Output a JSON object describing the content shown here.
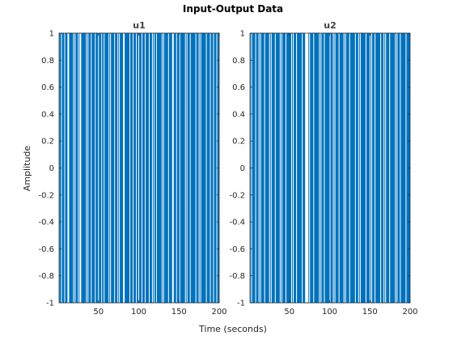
{
  "figure": {
    "title": "Input-Output Data",
    "xlabel": "Time (seconds)",
    "ylabel": "Amplitude"
  },
  "colors": {
    "signal": "#0072bd",
    "axes": "#262626",
    "background": "#ffffff"
  },
  "chart_data": [
    {
      "type": "line",
      "title": "u1",
      "xlabel": "",
      "ylabel": "",
      "xlim": [
        1,
        200
      ],
      "ylim": [
        -1,
        1
      ],
      "xticks": [
        50,
        100,
        150,
        200
      ],
      "yticks": [
        -1,
        -0.8,
        -0.6,
        -0.4,
        -0.2,
        0,
        0.2,
        0.4,
        0.6,
        0.8,
        1
      ],
      "ytick_labels": [
        "-1",
        "-0.8",
        "-0.6",
        "-0.4",
        "-0.2",
        "0",
        "0.2",
        "0.4",
        "0.6",
        "0.8",
        "1"
      ],
      "grid": false,
      "series": [
        {
          "values": [
            1,
            -1,
            1,
            1,
            -1,
            1,
            -1,
            -1,
            1,
            -1,
            1,
            1,
            1,
            -1,
            1,
            -1,
            1,
            -1,
            -1,
            1,
            1,
            -1,
            1,
            -1,
            -1,
            1,
            1,
            1,
            -1,
            1,
            -1,
            1,
            -1,
            1,
            1,
            -1,
            -1,
            1,
            -1,
            1,
            1,
            -1,
            1,
            -1,
            1,
            1,
            -1,
            1,
            -1,
            -1,
            1,
            -1,
            1,
            1,
            -1,
            1,
            1,
            -1,
            1,
            -1,
            1,
            -1,
            -1,
            1,
            1,
            -1,
            1,
            -1,
            1,
            1,
            -1,
            1,
            -1,
            -1,
            1,
            1,
            -1,
            1,
            -1,
            1,
            1,
            1,
            -1,
            1,
            -1,
            1,
            -1,
            1,
            1,
            -1,
            1,
            -1,
            -1,
            1,
            -1,
            1,
            1,
            -1,
            1,
            1,
            -1,
            1,
            -1,
            -1,
            1,
            -1,
            1,
            1,
            -1,
            1,
            -1,
            1,
            1,
            -1,
            1,
            -1,
            -1,
            1,
            1,
            -1,
            1,
            1,
            -1,
            1,
            -1,
            1,
            -1,
            1,
            1,
            -1,
            -1,
            1,
            -1,
            1,
            -1,
            1,
            1,
            -1,
            1,
            -1,
            1,
            1,
            1,
            -1,
            1,
            -1,
            -1,
            1,
            -1,
            1,
            1,
            -1,
            1,
            -1,
            1,
            -1,
            1,
            1,
            -1,
            -1,
            1,
            -1,
            1,
            1,
            -1,
            1,
            -1,
            1,
            -1,
            1,
            1,
            -1,
            1,
            -1,
            -1,
            1,
            1,
            -1,
            1,
            -1,
            1,
            -1,
            1,
            1,
            -1,
            1,
            -1,
            1,
            1,
            -1,
            1,
            -1,
            -1,
            1,
            -1,
            1,
            1,
            -1,
            1,
            -1
          ]
        }
      ]
    },
    {
      "type": "line",
      "title": "u2",
      "xlabel": "",
      "ylabel": "",
      "xlim": [
        1,
        200
      ],
      "ylim": [
        -1,
        1
      ],
      "xticks": [
        50,
        100,
        150,
        200
      ],
      "yticks": [
        -1,
        -0.8,
        -0.6,
        -0.4,
        -0.2,
        0,
        0.2,
        0.4,
        0.6,
        0.8,
        1
      ],
      "ytick_labels": [
        "-1",
        "-0.8",
        "-0.6",
        "-0.4",
        "-0.2",
        "0",
        "0.2",
        "0.4",
        "0.6",
        "0.8",
        "1"
      ],
      "grid": false,
      "series": [
        {
          "values": [
            -1,
            1,
            1,
            -1,
            1,
            -1,
            1,
            1,
            -1,
            1,
            -1,
            -1,
            1,
            1,
            -1,
            1,
            -1,
            1,
            1,
            -1,
            1,
            -1,
            1,
            -1,
            -1,
            1,
            1,
            -1,
            1,
            -1,
            1,
            1,
            -1,
            1,
            -1,
            1,
            -1,
            -1,
            1,
            1,
            -1,
            1,
            -1,
            1,
            1,
            -1,
            1,
            -1,
            1,
            -1,
            1,
            1,
            -1,
            -1,
            1,
            -1,
            1,
            1,
            -1,
            1,
            -1,
            1,
            -1,
            1,
            1,
            -1,
            1,
            -1,
            -1,
            -1,
            -1,
            -1,
            1,
            1,
            -1,
            1,
            -1,
            1,
            1,
            -1,
            1,
            -1,
            1,
            -1,
            1,
            1,
            -1,
            -1,
            1,
            -1,
            1,
            1,
            -1,
            1,
            -1,
            1,
            -1,
            1,
            1,
            -1,
            1,
            -1,
            -1,
            1,
            1,
            -1,
            1,
            -1,
            1,
            1,
            -1,
            1,
            -1,
            1,
            -1,
            -1,
            1,
            1,
            -1,
            1,
            -1,
            1,
            1,
            -1,
            1,
            -1,
            1,
            -1,
            1,
            1,
            -1,
            1,
            -1,
            -1,
            1,
            1,
            -1,
            1,
            -1,
            1,
            -1,
            1,
            1,
            -1,
            1,
            -1,
            1,
            1,
            -1,
            -1,
            1,
            -1,
            1,
            1,
            -1,
            1,
            -1,
            1,
            -1,
            1,
            1,
            -1,
            1,
            -1,
            -1,
            1,
            1,
            -1,
            1,
            -1,
            1,
            1,
            -1,
            1,
            -1,
            1,
            -1,
            1,
            1,
            -1,
            -1,
            1,
            -1,
            1,
            1,
            -1,
            1,
            -1,
            1,
            -1,
            1,
            1,
            -1,
            1,
            -1,
            1,
            -1
          ]
        }
      ]
    }
  ]
}
